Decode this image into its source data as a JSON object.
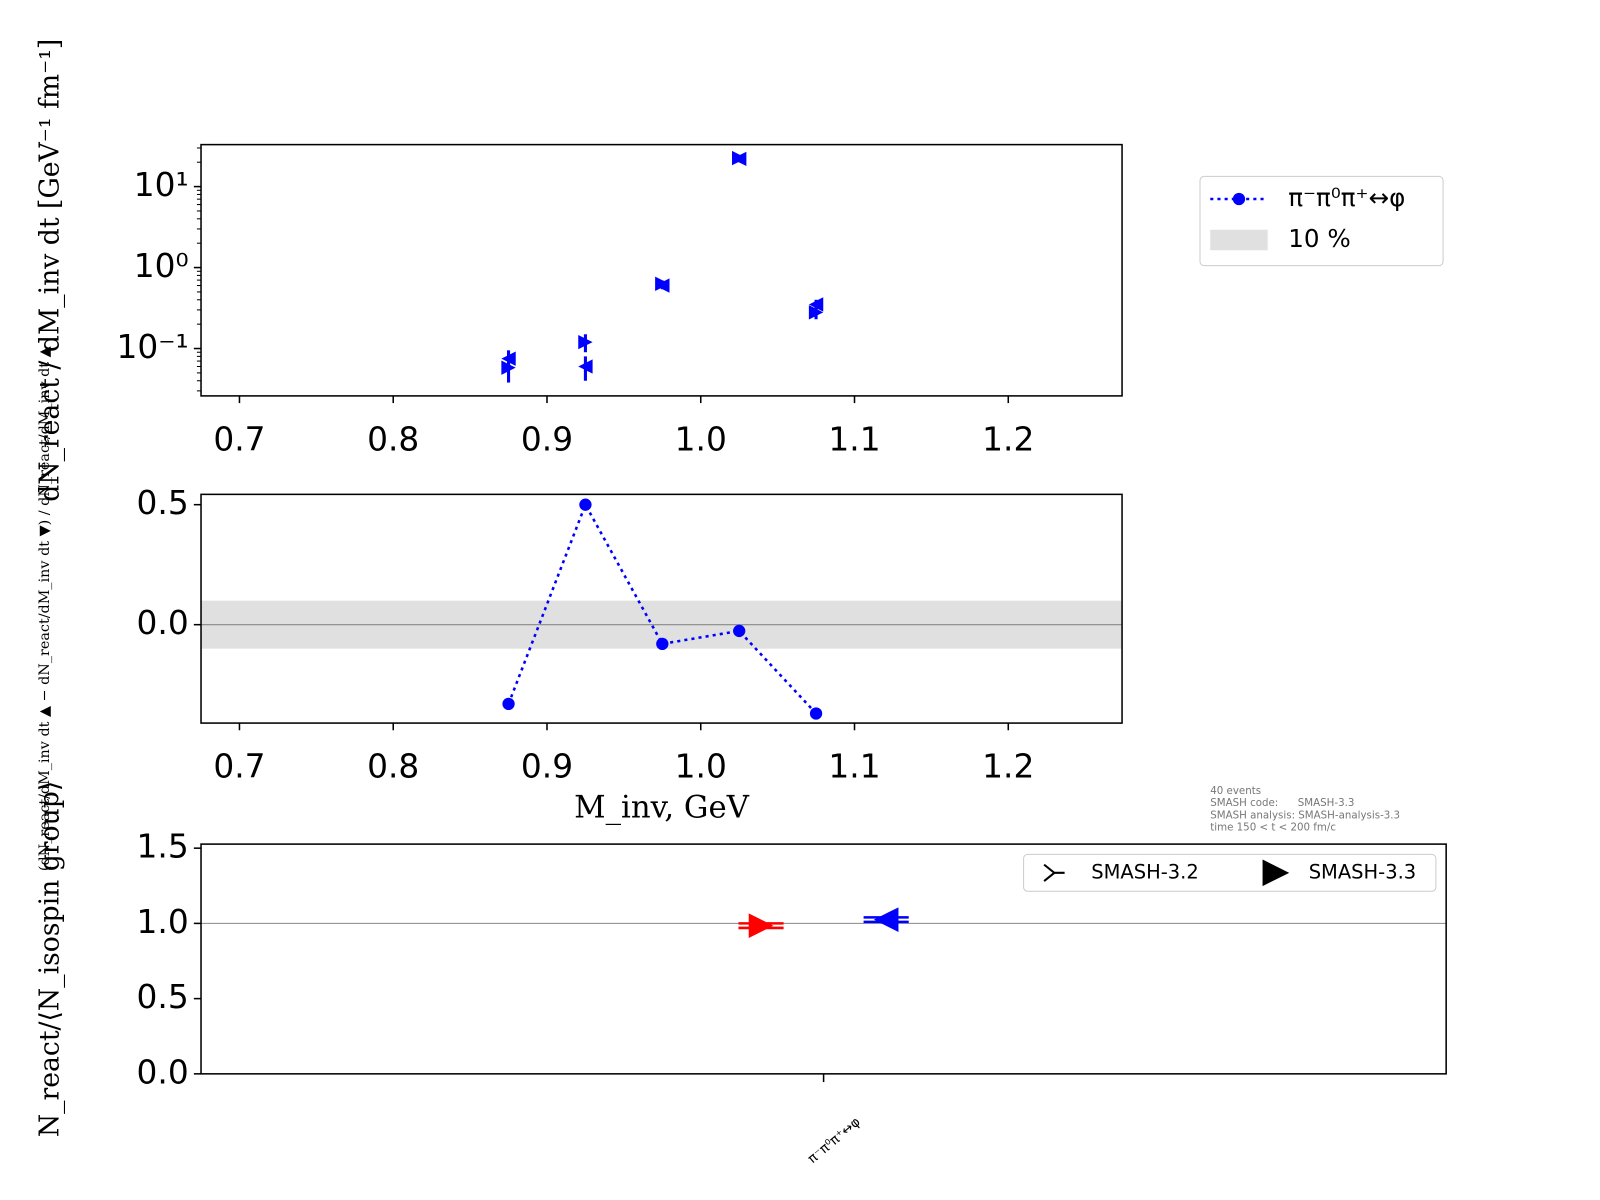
{
  "chart_data": [
    {
      "type": "errorbar",
      "yscale": "log",
      "ylabel": "dN_react / dM_inv dt [GeV⁻¹ fm⁻¹]",
      "x": [
        0.875,
        0.925,
        0.975,
        1.025,
        1.075
      ],
      "xlim": [
        0.675,
        1.274
      ],
      "xticks": [
        0.7,
        0.8,
        0.9,
        {
          "value": 1,
          "label": "1.0"
        },
        1.1,
        1.2
      ],
      "ylim": [
        0.026,
        33
      ],
      "yticks": [
        {
          "value": 0.1,
          "label": "10⁻¹"
        },
        {
          "value": 1,
          "label": "10⁰"
        },
        {
          "value": 10,
          "label": "10¹"
        }
      ],
      "series": [
        {
          "color": "#0000ff",
          "marker": "triangle-left",
          "values": [
            0.075,
            0.06,
            0.6,
            22,
            0.35
          ],
          "errors": [
            0.02,
            0.02,
            0.06,
            2,
            0.05
          ]
        },
        {
          "color": "#0000ff",
          "marker": "triangle-right",
          "values": [
            0.058,
            0.12,
            0.63,
            22.5,
            0.28
          ],
          "errors": [
            0.02,
            0.03,
            0.06,
            2,
            0.05
          ]
        }
      ]
    },
    {
      "type": "line",
      "ylabel": "(dN_react/dM_inv dt ▲ − dN_react/dM_inv dt ▼) / dN_react/dM_inv dt ▲",
      "xlabel": "M_inv, GeV",
      "x": [
        0.875,
        0.925,
        0.975,
        1.025,
        1.075
      ],
      "xlim": [
        0.675,
        1.274
      ],
      "xticks": [
        0.7,
        0.8,
        0.9,
        {
          "value": 1,
          "label": "1.0"
        },
        1.1,
        1.2
      ],
      "ylim": [
        -0.41,
        0.543
      ],
      "yticks": [
        {
          "value": 0,
          "label": "0.0"
        },
        0.5
      ],
      "reference_line": 0,
      "band": {
        "name": "10 %",
        "lower": -0.1,
        "upper": 0.1,
        "color": "#e0e0e0"
      },
      "legend": "outside right",
      "series": [
        {
          "name": "π⁻π⁰π⁺↔φ",
          "color": "#0000ff",
          "linestyle": "dotted",
          "values": [
            -0.33,
            0.5,
            -0.08,
            -0.026,
            -0.37
          ]
        }
      ]
    },
    {
      "type": "category-errorbar",
      "ylabel": "N_react/⟨N_isospin group⟩",
      "categories": [
        "π⁻π⁰π⁺↔φ"
      ],
      "ylim": [
        0,
        1.527
      ],
      "yticks": [
        {
          "value": 0,
          "label": "0.0"
        },
        0.5,
        {
          "value": 1,
          "label": "1.0"
        },
        1.5
      ],
      "reference_line": 1,
      "legend": "upper right",
      "annotations": [
        "40 events",
        "SMASH code:      SMASH-3.3",
        "SMASH analysis: SMASH-analysis-3.3",
        "time 150 < t < 200 fm/c"
      ],
      "series": [
        {
          "name": "SMASH-3.2",
          "color": "#ff0000",
          "marker": "triangle-right",
          "values": [
            0.985
          ],
          "errors": [
            0.015
          ]
        },
        {
          "name": "SMASH-3.3",
          "color": "#0000ff",
          "marker": "triangle-left",
          "values": [
            1.025
          ],
          "errors": [
            0.015
          ]
        }
      ]
    }
  ]
}
